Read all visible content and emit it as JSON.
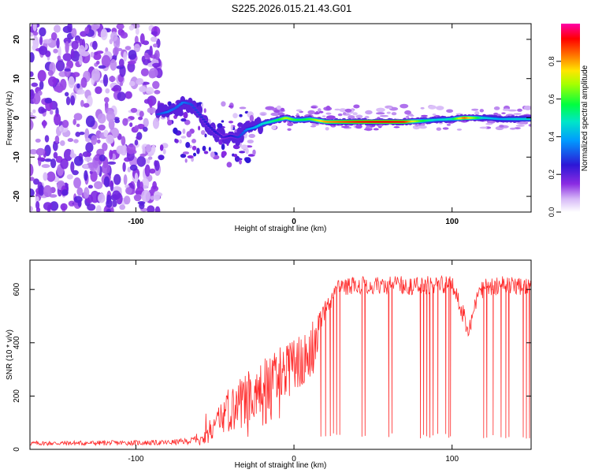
{
  "title": "S225.2026.015.21.43.G01",
  "chart_data": [
    {
      "type": "heatmap",
      "xlabel": "Height of straight line (km)",
      "ylabel": "Frequency (Hz)",
      "xlim": [
        -167,
        150
      ],
      "ylim": [
        -24,
        24
      ],
      "xticks": [
        -100,
        0,
        100
      ],
      "yticks": [
        -20,
        -10,
        0,
        10,
        20
      ],
      "colorbar": {
        "label": "Normalized spectral amplitude",
        "range": [
          0,
          1
        ],
        "ticks": [
          0.0,
          0.2,
          0.4,
          0.6,
          0.8
        ],
        "tick_labels": [
          "0.0",
          "0.2",
          "0.4",
          "0.6",
          "0.8"
        ]
      },
      "ridge": [
        {
          "x": -85,
          "f": 1,
          "a": 0.3
        },
        {
          "x": -80,
          "f": 1.5,
          "a": 0.35
        },
        {
          "x": -75,
          "f": 2.5,
          "a": 0.32
        },
        {
          "x": -70,
          "f": 4,
          "a": 0.35
        },
        {
          "x": -65,
          "f": 3.5,
          "a": 0.3
        },
        {
          "x": -60,
          "f": 1,
          "a": 0.28
        },
        {
          "x": -55,
          "f": -1.5,
          "a": 0.25
        },
        {
          "x": -50,
          "f": -3.5,
          "a": 0.25
        },
        {
          "x": -45,
          "f": -5,
          "a": 0.22
        },
        {
          "x": -40,
          "f": -4.5,
          "a": 0.25
        },
        {
          "x": -35,
          "f": -5,
          "a": 0.28
        },
        {
          "x": -30,
          "f": -3,
          "a": 0.35
        },
        {
          "x": -25,
          "f": -2.5,
          "a": 0.4
        },
        {
          "x": -20,
          "f": -1.5,
          "a": 0.45
        },
        {
          "x": -15,
          "f": -1,
          "a": 0.5
        },
        {
          "x": -10,
          "f": -0.5,
          "a": 0.55
        },
        {
          "x": -5,
          "f": 0,
          "a": 0.7
        },
        {
          "x": 0,
          "f": -0.5,
          "a": 0.6
        },
        {
          "x": 5,
          "f": -0.5,
          "a": 0.55
        },
        {
          "x": 10,
          "f": -0.3,
          "a": 0.6
        },
        {
          "x": 20,
          "f": -1,
          "a": 0.8
        },
        {
          "x": 30,
          "f": -1,
          "a": 0.85
        },
        {
          "x": 40,
          "f": -1,
          "a": 0.9
        },
        {
          "x": 50,
          "f": -1,
          "a": 0.92
        },
        {
          "x": 60,
          "f": -1,
          "a": 0.92
        },
        {
          "x": 70,
          "f": -1,
          "a": 0.9
        },
        {
          "x": 80,
          "f": -0.8,
          "a": 0.6
        },
        {
          "x": 90,
          "f": -0.5,
          "a": 0.45
        },
        {
          "x": 100,
          "f": -0.3,
          "a": 0.5
        },
        {
          "x": 108,
          "f": 0,
          "a": 0.85
        },
        {
          "x": 120,
          "f": 0,
          "a": 0.45
        },
        {
          "x": 130,
          "f": -0.3,
          "a": 0.4
        },
        {
          "x": 140,
          "f": -0.3,
          "a": 0.45
        },
        {
          "x": 150,
          "f": -0.3,
          "a": 0.45
        }
      ]
    },
    {
      "type": "line",
      "xlabel": "Height of straight line (km)",
      "ylabel": "SNR (10 * v/v)",
      "xlim": [
        -167,
        150
      ],
      "ylim": [
        0,
        710
      ],
      "xticks": [
        -100,
        0,
        100
      ],
      "yticks": [
        0,
        200,
        400,
        600
      ],
      "series": [
        {
          "name": "SNR",
          "color": "#ff2a2a",
          "envelope_x": [
            -167,
            -80,
            -65,
            -55,
            -50,
            -45,
            -40,
            -35,
            -30,
            -25,
            -20,
            -15,
            -10,
            -5,
            0,
            5,
            10,
            15,
            20,
            25,
            28,
            35,
            60,
            80,
            90,
            100,
            105,
            108,
            110,
            115,
            120,
            130,
            150
          ],
          "envelope_y": [
            25,
            28,
            35,
            70,
            120,
            200,
            250,
            270,
            290,
            310,
            340,
            360,
            380,
            400,
            420,
            440,
            470,
            500,
            560,
            610,
            640,
            650,
            650,
            650,
            650,
            650,
            570,
            530,
            470,
            590,
            640,
            650,
            650
          ],
          "dropout_x": [
            17,
            20,
            23,
            25,
            27,
            29,
            43,
            45,
            60,
            62,
            80,
            82,
            84,
            86,
            88,
            91,
            96,
            98,
            99,
            120,
            122,
            126,
            131,
            134,
            136,
            145,
            147,
            149
          ],
          "dropout_y": 40
        }
      ]
    }
  ]
}
